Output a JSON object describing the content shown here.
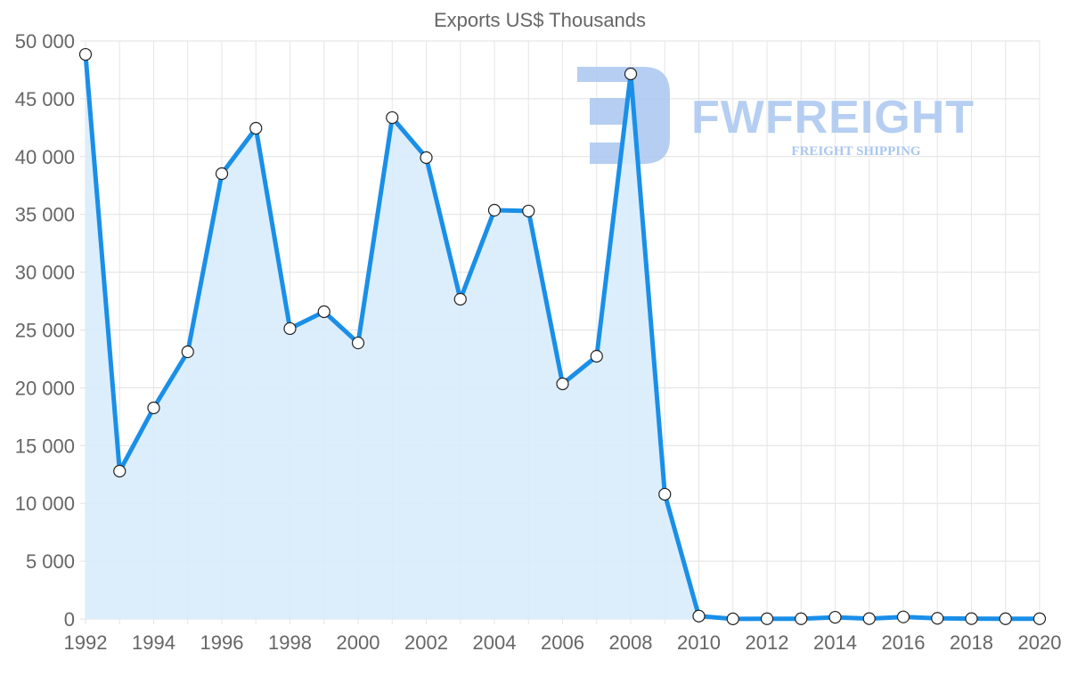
{
  "chart_data": {
    "type": "line",
    "title": "Exports US$ Thousands",
    "xlabel": "",
    "ylabel": "",
    "x": [
      1992,
      1993,
      1994,
      1995,
      1996,
      1997,
      1998,
      1999,
      2000,
      2001,
      2002,
      2003,
      2004,
      2005,
      2006,
      2007,
      2008,
      2009,
      2010,
      2011,
      2012,
      2013,
      2014,
      2015,
      2016,
      2017,
      2018,
      2019,
      2020
    ],
    "series": [
      {
        "name": "Exports",
        "values": [
          48840,
          12790,
          18260,
          23110,
          38520,
          42450,
          25120,
          26580,
          23880,
          43370,
          39910,
          27660,
          35360,
          35290,
          20340,
          22730,
          47150,
          10790,
          250,
          10,
          20,
          20,
          150,
          30,
          180,
          60,
          30,
          20,
          20
        ],
        "color": "#1a8fe8",
        "fill": "#d8ecfb",
        "filled_until": 2010
      }
    ],
    "ylim": [
      0,
      50000
    ],
    "yticks": [
      0,
      5000,
      10000,
      15000,
      20000,
      25000,
      30000,
      35000,
      40000,
      45000,
      50000
    ],
    "ytick_labels": [
      "0",
      "5 000",
      "10 000",
      "15 000",
      "20 000",
      "25 000",
      "30 000",
      "35 000",
      "40 000",
      "45 000",
      "50 000"
    ],
    "xticks": [
      1992,
      1994,
      1996,
      1998,
      2000,
      2002,
      2004,
      2006,
      2008,
      2010,
      2012,
      2014,
      2016,
      2018,
      2020
    ],
    "xtick_labels": [
      "1992",
      "1994",
      "1996",
      "1998",
      "2000",
      "2002",
      "2004",
      "2006",
      "2008",
      "2010",
      "2012",
      "2014",
      "2016",
      "2018",
      "2020"
    ],
    "grid": true,
    "legend": null
  },
  "watermark": {
    "brand": "FWFREIGHT",
    "tagline": "FREIGHT SHIPPING",
    "color": "#a9c6f0"
  }
}
